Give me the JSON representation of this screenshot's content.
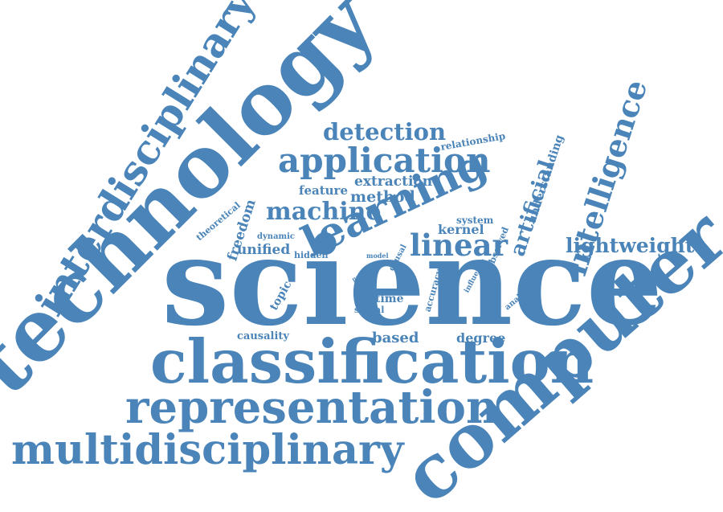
{
  "colors": {
    "word": "#4a84b8",
    "background": "#ffffff"
  },
  "words": {
    "science": "science",
    "technology": "technology",
    "computer": "computer",
    "classification": "classification",
    "representation": "representation",
    "multidisciplinary": "multidisciplinary",
    "interdisciplinary": "interdisciplinary",
    "learning": "learning",
    "application": "application",
    "intelligence": "intelligence",
    "machine": "machine",
    "detection": "detection",
    "linear": "linear",
    "lightweight": "lightweight",
    "artificial": "artificial",
    "understanding": "understanding",
    "method": "method",
    "extraction": "extraction",
    "feature": "feature",
    "relationship": "relationship",
    "system": "system",
    "kernel": "kernel",
    "unified": "unified",
    "freedom": "freedom",
    "theoretical": "theoretical",
    "dynamic": "dynamic",
    "hidden": "hidden",
    "model": "model",
    "causal": "causal",
    "observed": "observed",
    "paper": "paper",
    "topic": "topic",
    "time": "time",
    "signal": "signal",
    "accuracy": "accuracy",
    "influence": "influence",
    "analysis": "analysis",
    "causality": "causality",
    "based": "based",
    "degree": "degree"
  }
}
